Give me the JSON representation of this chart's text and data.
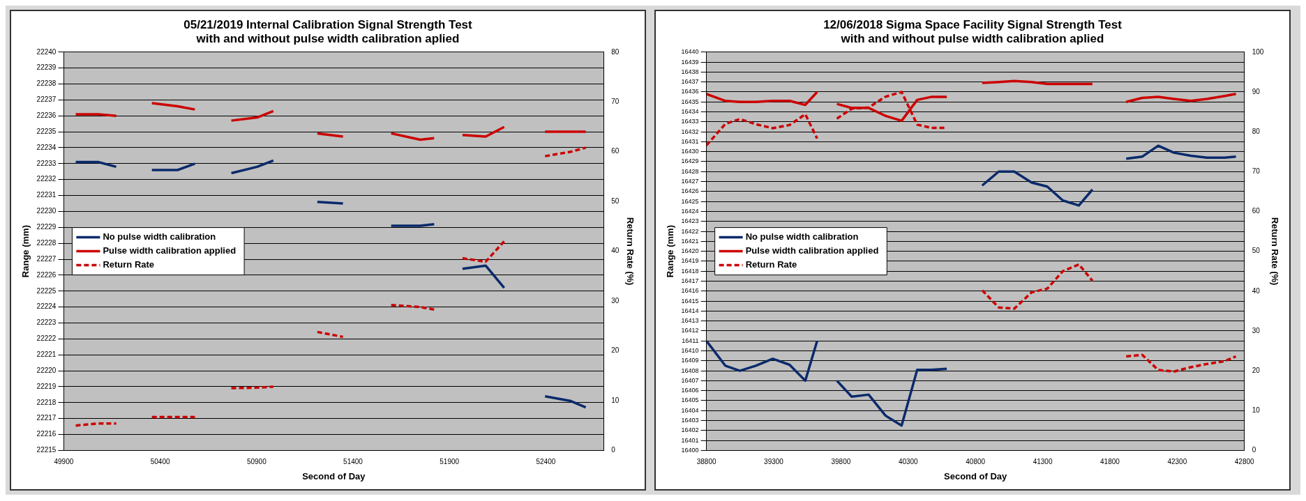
{
  "chart_data": [
    {
      "type": "line",
      "title": "05/21/2019 Internal Calibration Signal Strength Test\nwith and without pulse width calibration aplied",
      "xlabel": "Second of Day",
      "ylabel": "Range (mm)",
      "y2label": "Return Rate (%)",
      "x": [
        49962,
        50078,
        50172,
        50265,
        50357,
        50490,
        50580,
        50675,
        50769,
        50903,
        50987,
        51100,
        51215,
        51348,
        51470,
        51598,
        51749,
        51821,
        51900,
        51968,
        52088,
        52184,
        52290,
        52396,
        52530,
        52607
      ],
      "series": [
        {
          "name": "No pulse width calibration",
          "color": "#0a2a6b",
          "line_style": "solid",
          "values": [
            22233.1,
            22233.1,
            22232.8,
            null,
            22232.6,
            22232.6,
            22233.0,
            null,
            22232.4,
            22232.8,
            22233.2,
            null,
            22230.6,
            22230.5,
            null,
            22229.1,
            22229.1,
            22229.2,
            null,
            22226.4,
            22226.6,
            22225.2,
            null,
            22218.4,
            22218.1,
            22217.7
          ]
        },
        {
          "name": "Pulse width calibration applied",
          "color": "#cc0000",
          "line_style": "solid",
          "values": [
            22236.1,
            22236.1,
            22236.0,
            null,
            22236.8,
            22236.6,
            22236.4,
            null,
            22235.7,
            22235.9,
            22236.3,
            null,
            22234.9,
            22234.7,
            null,
            22234.9,
            22234.5,
            22234.6,
            null,
            22234.8,
            22234.7,
            22235.3,
            null,
            22235.0,
            22235.0,
            22235.0
          ]
        },
        {
          "name": "Return Rate",
          "color": "#cc0000",
          "line_style": "dashed",
          "axis": "y2",
          "values": [
            5.0,
            5.4,
            5.4,
            null,
            6.7,
            6.7,
            6.7,
            null,
            12.5,
            12.6,
            12.8,
            null,
            23.8,
            22.8,
            null,
            29.2,
            28.8,
            28.3,
            null,
            38.6,
            37.9,
            42.0,
            null,
            59.1,
            60.0,
            60.8
          ]
        }
      ],
      "xlim": [
        49900,
        52700
      ],
      "xticks": [
        49900,
        50400,
        50900,
        51400,
        51900,
        52400
      ],
      "ylim": [
        22215,
        22240
      ],
      "yticks": [
        22215,
        22216,
        22217,
        22218,
        22219,
        22220,
        22221,
        22222,
        22223,
        22224,
        22225,
        22226,
        22227,
        22228,
        22229,
        22230,
        22231,
        22232,
        22233,
        22234,
        22235,
        22236,
        22237,
        22238,
        22239,
        22240
      ],
      "y2lim": [
        0,
        80
      ],
      "y2ticks": [
        0,
        10,
        20,
        30,
        40,
        50,
        60,
        70,
        80
      ],
      "grid": "y",
      "legend": "left",
      "marker": "none"
    },
    {
      "type": "line",
      "title": "12/06/2018 Sigma Space Facility Signal Strength Test\nwith and without pulse width calibration aplied",
      "xlabel": "Second of Day",
      "ylabel": "Range (mm)",
      "y2label": "Return Rate (%)",
      "x": [
        38800,
        38941,
        39048,
        39167,
        39293,
        39418,
        39535,
        39623,
        39700,
        39770,
        39880,
        40006,
        40131,
        40251,
        40367,
        40470,
        40587,
        40720,
        40850,
        40973,
        41089,
        41218,
        41334,
        41450,
        41569,
        41670,
        41800,
        41921,
        42040,
        42159,
        42276,
        42401,
        42521,
        42653,
        42737
      ],
      "series": [
        {
          "name": "No pulse width calibration",
          "color": "#0a2a6b",
          "line_style": "solid",
          "values": [
            16411.0,
            16408.5,
            16408.0,
            16408.5,
            16409.2,
            16408.6,
            16407.0,
            16411.0,
            null,
            16407.0,
            16405.4,
            16405.6,
            16403.5,
            16402.5,
            16408.1,
            16408.1,
            16408.2,
            null,
            16426.6,
            16428.0,
            16428.0,
            16426.9,
            16426.5,
            16425.1,
            16424.6,
            16426.2,
            null,
            16429.3,
            16429.5,
            16430.6,
            16429.9,
            16429.6,
            16429.4,
            16429.4,
            16429.5
          ]
        },
        {
          "name": "Pulse width calibration applied",
          "color": "#cc0000",
          "line_style": "solid",
          "values": [
            16435.8,
            16435.1,
            16435.0,
            16435.0,
            16435.1,
            16435.1,
            16434.7,
            16436.0,
            null,
            16434.8,
            16434.4,
            16434.4,
            16433.6,
            16433.1,
            16435.2,
            16435.5,
            16435.5,
            null,
            16436.9,
            16437.0,
            16437.1,
            16437.0,
            16436.8,
            16436.8,
            16436.8,
            16436.8,
            null,
            16435.0,
            16435.4,
            16435.5,
            16435.3,
            16435.1,
            16435.3,
            16435.6,
            16435.8
          ]
        },
        {
          "name": "Return Rate",
          "color": "#cc0000",
          "line_style": "dashed",
          "axis": "y2",
          "values": [
            76.6,
            82.0,
            83.2,
            81.9,
            80.9,
            81.7,
            84.4,
            78.3,
            null,
            83.3,
            85.8,
            86.1,
            88.8,
            90.0,
            81.8,
            81.0,
            81.0,
            null,
            40.2,
            35.9,
            35.6,
            39.7,
            40.6,
            45.0,
            46.7,
            42.6,
            null,
            23.6,
            24.0,
            20.2,
            19.8,
            20.9,
            21.7,
            22.4,
            23.6
          ]
        }
      ],
      "xlim": [
        38800,
        42800
      ],
      "xticks": [
        38800,
        39300,
        39800,
        40300,
        40800,
        41300,
        41800,
        42300,
        42800
      ],
      "ylim": [
        16400,
        16440
      ],
      "yticks": [
        16400,
        16401,
        16402,
        16403,
        16404,
        16405,
        16406,
        16407,
        16408,
        16409,
        16410,
        16411,
        16412,
        16413,
        16414,
        16415,
        16416,
        16417,
        16418,
        16419,
        16420,
        16421,
        16422,
        16423,
        16424,
        16425,
        16426,
        16427,
        16428,
        16429,
        16430,
        16431,
        16432,
        16433,
        16434,
        16435,
        16436,
        16437,
        16438,
        16439,
        16440
      ],
      "y2lim": [
        0,
        100
      ],
      "y2ticks": [
        0,
        10,
        20,
        30,
        40,
        50,
        60,
        70,
        80,
        90,
        100
      ],
      "grid": "y",
      "legend": "left",
      "marker": "none"
    }
  ]
}
